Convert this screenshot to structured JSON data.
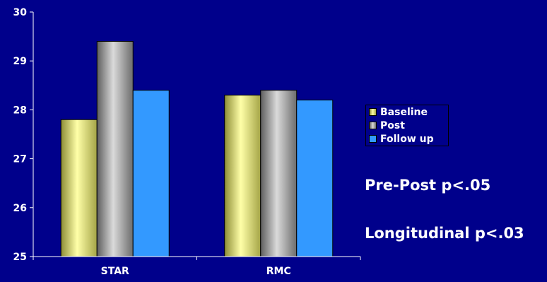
{
  "chart_data": {
    "type": "bar",
    "categories": [
      "STAR",
      "RMC"
    ],
    "series": [
      {
        "name": "Baseline",
        "values": [
          27.8,
          28.3
        ],
        "color": "#f3f39a"
      },
      {
        "name": "Post",
        "values": [
          29.4,
          28.4
        ],
        "color": "#b3b3b3"
      },
      {
        "name": "Follow up",
        "values": [
          28.4,
          28.2
        ],
        "color": "#3399ff"
      }
    ],
    "ylim": [
      25,
      30
    ],
    "yticks": [
      "25",
      "26",
      "27",
      "28",
      "29",
      "30"
    ],
    "legend": "right",
    "grid": false
  },
  "annotations": {
    "pre_post": "Pre-Post p<.05",
    "longitudinal": "Longitudinal p<.03"
  },
  "colors": {
    "background": "#00008b",
    "text": "#ffffff"
  }
}
